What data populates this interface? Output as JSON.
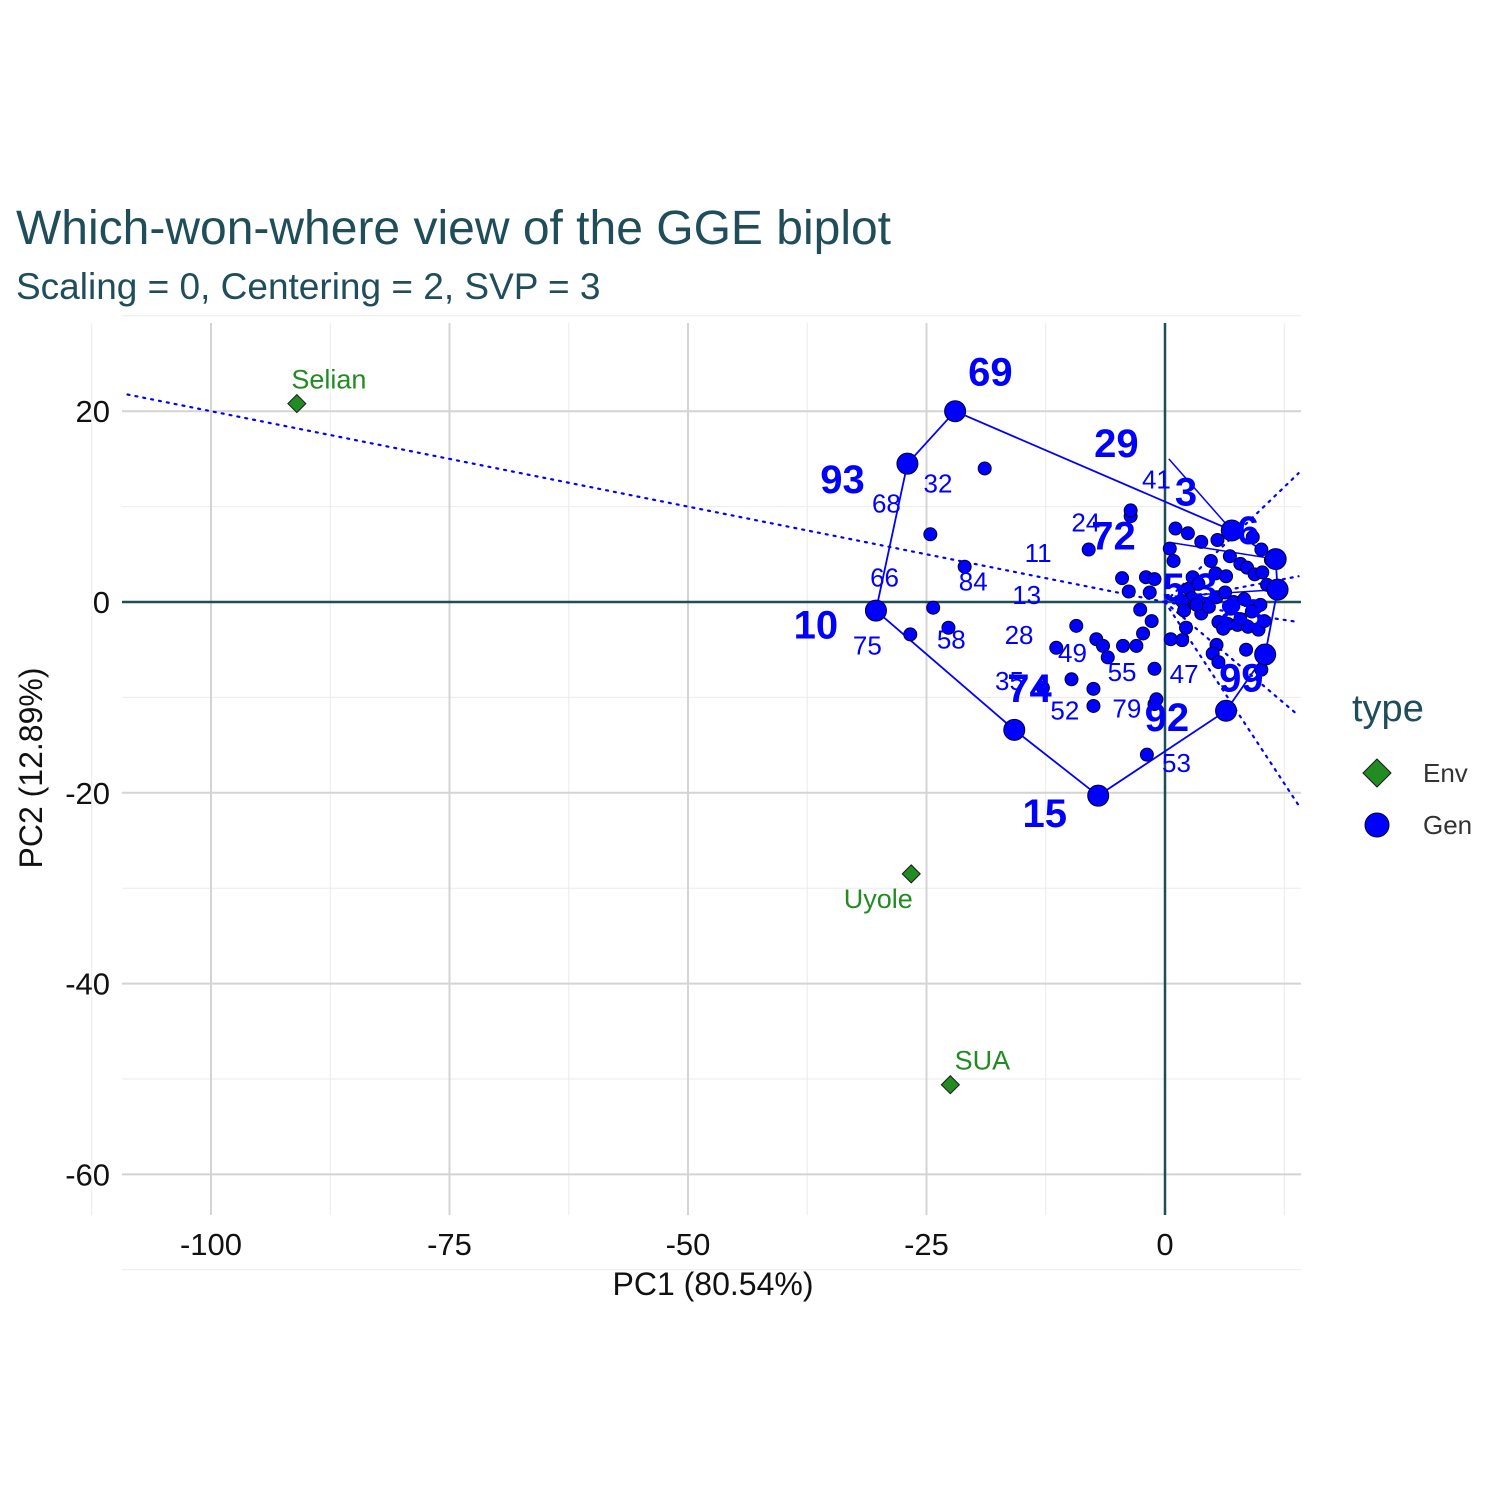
{
  "chart_data": {
    "type": "scatter",
    "title": "Which-won-where view of the GGE biplot",
    "subtitle": "Scaling = 0, Centering = 2, SVP = 3",
    "xlabel": "PC1 (80.54%)",
    "ylabel": "PC2 (12.89%)",
    "xlim": [
      -109,
      14
    ],
    "ylim": [
      -64.5,
      29
    ],
    "xticks": [
      -100,
      -75,
      -50,
      -25,
      0
    ],
    "xtick_labels": [
      "-100",
      "-75",
      "-50",
      "-25",
      "0"
    ],
    "yticks": [
      -60,
      -40,
      -20,
      0,
      20
    ],
    "ytick_labels": [
      "-60",
      "-40",
      "-20",
      "0",
      "20"
    ],
    "grid": true,
    "legend": {
      "title": "type",
      "position": "right",
      "entries": [
        {
          "label": "Env",
          "shape": "diamond",
          "color": "#228b22"
        },
        {
          "label": "Gen",
          "shape": "circle",
          "color": "#0000ff"
        }
      ]
    },
    "colors": {
      "env": "#228b22",
      "gen": "#0000ff",
      "axis_line": "#1f4e5a"
    },
    "environments": [
      {
        "name": "Selian",
        "x": -91,
        "y": 20.8
      },
      {
        "name": "Uyole",
        "x": -26.6,
        "y": -28.5
      },
      {
        "name": "SUA",
        "x": -22.5,
        "y": -50.6
      }
    ],
    "hull": [
      {
        "label": "69",
        "x": -22,
        "y": 20
      },
      {
        "label": "93",
        "x": -27,
        "y": 14.5
      },
      {
        "label": "10",
        "x": -30.3,
        "y": -0.9
      },
      {
        "label": "74",
        "x": -15.8,
        "y": -13.4
      },
      {
        "label": "15",
        "x": -7,
        "y": -20.3
      },
      {
        "label": "92",
        "x": 6.4,
        "y": -11.4
      },
      {
        "label": "99",
        "x": 10.5,
        "y": -5.5
      },
      {
        "label": "83",
        "x": 11.8,
        "y": 1.3
      },
      {
        "label": "6",
        "x": 11.6,
        "y": 4.5
      },
      {
        "label": "3",
        "x": 7.0,
        "y": 7.5
      }
    ],
    "winner_labels": [
      {
        "label": "69",
        "x": -18.3,
        "y": 22.7
      },
      {
        "label": "93",
        "x": -33.8,
        "y": 11.4
      },
      {
        "label": "10",
        "x": -36.6,
        "y": -3.8
      },
      {
        "label": "74",
        "x": -14.2,
        "y": -10.5
      },
      {
        "label": "15",
        "x": -12.6,
        "y": -23.6
      },
      {
        "label": "92",
        "x": 0.2,
        "y": -13.5
      },
      {
        "label": "99",
        "x": 8.0,
        "y": -9.4
      },
      {
        "label": "83",
        "x": 8.1,
        "y": -2.6
      },
      {
        "label": "29",
        "x": -5.1,
        "y": 15.2
      },
      {
        "label": "3",
        "x": 2.2,
        "y": 10.1
      },
      {
        "label": "72",
        "x": -5.4,
        "y": 5.5
      },
      {
        "label": "6",
        "x": 8.7,
        "y": 6.1
      },
      {
        "label": "5",
        "x": 0.9,
        "y": 0.1
      },
      {
        "label": "3",
        "x": 4.3,
        "y": 0.1
      }
    ],
    "genotype_labels": [
      {
        "label": "32",
        "x": -23.8,
        "y": 11.5
      },
      {
        "label": "68",
        "x": -29.2,
        "y": 9.4
      },
      {
        "label": "41",
        "x": -0.9,
        "y": 11.9
      },
      {
        "label": "24",
        "x": -8.3,
        "y": 7.4
      },
      {
        "label": "11",
        "x": -13.3,
        "y": 4.2
      },
      {
        "label": "66",
        "x": -29.4,
        "y": 1.6
      },
      {
        "label": "84",
        "x": -20.1,
        "y": 1.2
      },
      {
        "label": "13",
        "x": -14.5,
        "y": -0.2
      },
      {
        "label": "75",
        "x": -31.2,
        "y": -5.5
      },
      {
        "label": "58",
        "x": -22.4,
        "y": -4.9
      },
      {
        "label": "28",
        "x": -15.3,
        "y": -4.4
      },
      {
        "label": "49",
        "x": -9.7,
        "y": -6.3
      },
      {
        "label": "55",
        "x": -4.5,
        "y": -8.3
      },
      {
        "label": "47",
        "x": 2.0,
        "y": -8.5
      },
      {
        "label": "35",
        "x": -16.3,
        "y": -9.2
      },
      {
        "label": "52",
        "x": -10.5,
        "y": -12.3
      },
      {
        "label": "79",
        "x": -4.0,
        "y": -12.1
      },
      {
        "label": "53",
        "x": 1.2,
        "y": -17.8
      }
    ],
    "genotype_points": [
      [
        -18.9,
        14.0
      ],
      [
        -24.6,
        7.1
      ],
      [
        -21.0,
        3.7
      ],
      [
        -24.3,
        -0.6
      ],
      [
        -22.7,
        -2.7
      ],
      [
        -26.7,
        -3.4
      ],
      [
        -12.8,
        -9.0
      ],
      [
        -9.8,
        -8.1
      ],
      [
        -7.5,
        -9.1
      ],
      [
        -7.5,
        -10.9
      ],
      [
        -1.1,
        -10.7
      ],
      [
        -0.9,
        -10.2
      ],
      [
        -1.1,
        -7.0
      ],
      [
        -1.9,
        -16.0
      ],
      [
        -9.3,
        -2.5
      ],
      [
        -11.4,
        -4.8
      ],
      [
        -7.2,
        -3.9
      ],
      [
        -6.5,
        -4.6
      ],
      [
        -6.0,
        -5.8
      ],
      [
        -4.4,
        -4.6
      ],
      [
        -3.0,
        -4.6
      ],
      [
        -2.3,
        -3.3
      ],
      [
        -2.6,
        -0.8
      ],
      [
        -1.4,
        -2.0
      ],
      [
        -4.5,
        2.5
      ],
      [
        -3.8,
        1.1
      ],
      [
        -2.0,
        2.6
      ],
      [
        -1.1,
        2.4
      ],
      [
        -1.6,
        1.0
      ],
      [
        -3.6,
        9.0
      ],
      [
        -3.6,
        9.6
      ],
      [
        -8.0,
        5.5
      ],
      [
        0.5,
        5.6
      ],
      [
        0.9,
        4.3
      ],
      [
        1.1,
        7.7
      ],
      [
        2.4,
        7.2
      ],
      [
        3.8,
        6.3
      ],
      [
        5.5,
        6.5
      ],
      [
        4.8,
        4.3
      ],
      [
        5.3,
        3.0
      ],
      [
        6.4,
        2.7
      ],
      [
        6.8,
        4.8
      ],
      [
        7.9,
        4.0
      ],
      [
        8.6,
        3.6
      ],
      [
        9.4,
        2.9
      ],
      [
        10.2,
        3.1
      ],
      [
        10.7,
        1.8
      ],
      [
        11.1,
        4.4
      ],
      [
        9.2,
        6.8
      ],
      [
        10.1,
        5.5
      ],
      [
        2.5,
        1.4
      ],
      [
        2.9,
        2.6
      ],
      [
        3.5,
        1.9
      ],
      [
        2.8,
        0.4
      ],
      [
        1.8,
        0.1
      ],
      [
        2.0,
        -0.9
      ],
      [
        3.8,
        -1.2
      ],
      [
        3.3,
        -0.3
      ],
      [
        4.6,
        -0.5
      ],
      [
        5.4,
        0.5
      ],
      [
        6.3,
        1.0
      ],
      [
        7.2,
        0.0
      ],
      [
        8.3,
        0.3
      ],
      [
        9.5,
        -0.6
      ],
      [
        10.0,
        -0.3
      ],
      [
        5.6,
        -2.1
      ],
      [
        6.6,
        -2.3
      ],
      [
        7.6,
        -2.4
      ],
      [
        8.7,
        -2.6
      ],
      [
        9.8,
        -2.9
      ],
      [
        10.4,
        -2.0
      ],
      [
        2.2,
        -2.7
      ],
      [
        1.8,
        -4.0
      ],
      [
        0.6,
        -3.9
      ],
      [
        5.4,
        -4.5
      ],
      [
        5.0,
        -5.4
      ],
      [
        5.6,
        -6.3
      ],
      [
        8.5,
        -5.0
      ],
      [
        10.1,
        -7.1
      ],
      [
        9.1,
        -1.0
      ],
      [
        7.9,
        -1.8
      ],
      [
        6.1,
        -2.8
      ],
      [
        6.9,
        -0.7
      ]
    ],
    "rays": [
      {
        "from": [
          0,
          0
        ],
        "to": [
          -109,
          21.8
        ]
      },
      {
        "from": [
          0,
          0
        ],
        "to": [
          14,
          13.5
        ]
      },
      {
        "from": [
          0,
          0
        ],
        "to": [
          14,
          2.7
        ]
      },
      {
        "from": [
          0,
          0
        ],
        "to": [
          14,
          -2.1
        ]
      },
      {
        "from": [
          0,
          0
        ],
        "to": [
          14,
          -11.9
        ]
      },
      {
        "from": [
          0,
          0
        ],
        "to": [
          14,
          -21.3
        ]
      }
    ],
    "spokes": [
      {
        "from": [
          0.4,
          15.0
        ],
        "to": [
          7.0,
          7.5
        ]
      },
      {
        "from": [
          0.8,
          6.2
        ],
        "to": [
          11.6,
          4.5
        ]
      },
      {
        "from": [
          1.0,
          0.6
        ],
        "to": [
          11.8,
          1.3
        ]
      }
    ]
  }
}
